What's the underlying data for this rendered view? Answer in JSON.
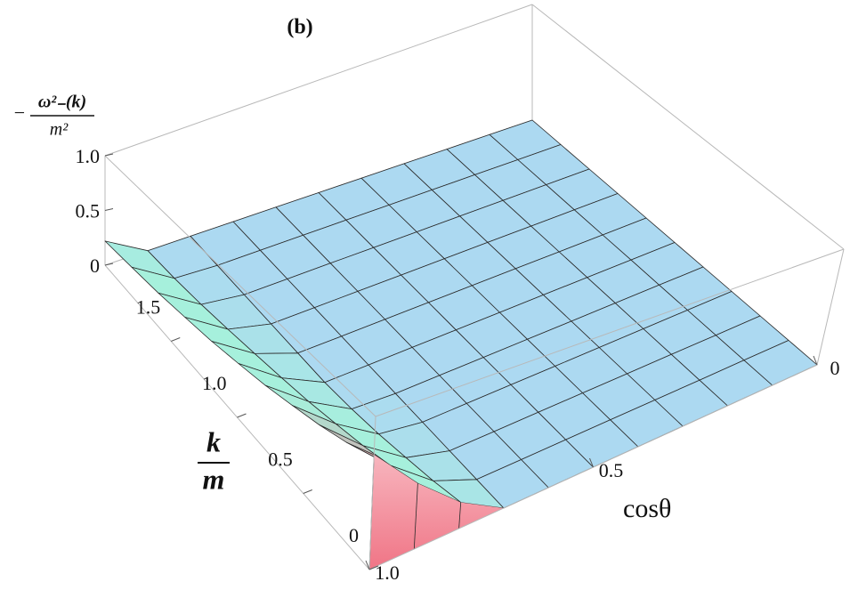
{
  "chart_data": {
    "type": "surface3d",
    "title": "(b)",
    "xlabel": "cosθ",
    "ylabel": {
      "numerator": "k",
      "denominator": "m"
    },
    "zlabel": {
      "prefix": "−",
      "numerator": "ω²₋(k)",
      "denominator": "m²"
    },
    "x": [
      0,
      0.1,
      0.2,
      0.3,
      0.4,
      0.5,
      0.6,
      0.7,
      0.8,
      0.9,
      1
    ],
    "y": [
      0,
      0.2,
      0.4,
      0.6,
      0.8,
      1,
      1.2,
      1.4,
      1.6,
      1.8,
      2
    ],
    "z": [
      [
        0,
        0,
        0,
        0,
        0,
        0,
        0,
        0,
        0.18,
        0.44,
        0.75
      ],
      [
        0,
        0,
        0,
        0,
        0,
        0,
        0,
        0,
        0.13,
        0.37,
        0.65
      ],
      [
        0,
        0,
        0,
        0,
        0,
        0,
        0,
        0,
        0.09,
        0.31,
        0.58
      ],
      [
        0,
        0,
        0,
        0,
        0,
        0,
        0,
        0,
        0.05,
        0.26,
        0.52
      ],
      [
        0,
        0,
        0,
        0,
        0,
        0,
        0,
        0,
        0.02,
        0.21,
        0.46
      ],
      [
        0,
        0,
        0,
        0,
        0,
        0,
        0,
        0,
        0,
        0.17,
        0.41
      ],
      [
        0,
        0,
        0,
        0,
        0,
        0,
        0,
        0,
        0,
        0.13,
        0.36
      ],
      [
        0,
        0,
        0,
        0,
        0,
        0,
        0,
        0,
        0,
        0.09,
        0.32
      ],
      [
        0,
        0,
        0,
        0,
        0,
        0,
        0,
        0,
        0,
        0.05,
        0.28
      ],
      [
        0,
        0,
        0,
        0,
        0,
        0,
        0,
        0,
        0,
        0.02,
        0.25
      ],
      [
        0,
        0,
        0,
        0,
        0,
        0,
        0,
        0,
        0,
        0,
        0.22
      ]
    ],
    "xlim": [
      0,
      1
    ],
    "ylim": [
      0,
      2
    ],
    "zlim": [
      0,
      1
    ],
    "xticks": [
      0,
      0.5,
      {
        "value": 1,
        "label": "1.0"
      }
    ],
    "yticks": [
      0,
      0.5,
      {
        "value": 1,
        "label": "1.0"
      },
      1.5
    ],
    "zticks": [
      0,
      0.5,
      {
        "value": 1,
        "label": "1.0"
      }
    ],
    "colors": {
      "low": "#acd9f1",
      "mid": "#a6f0dc",
      "high": "#f07586"
    },
    "mesh": true
  }
}
